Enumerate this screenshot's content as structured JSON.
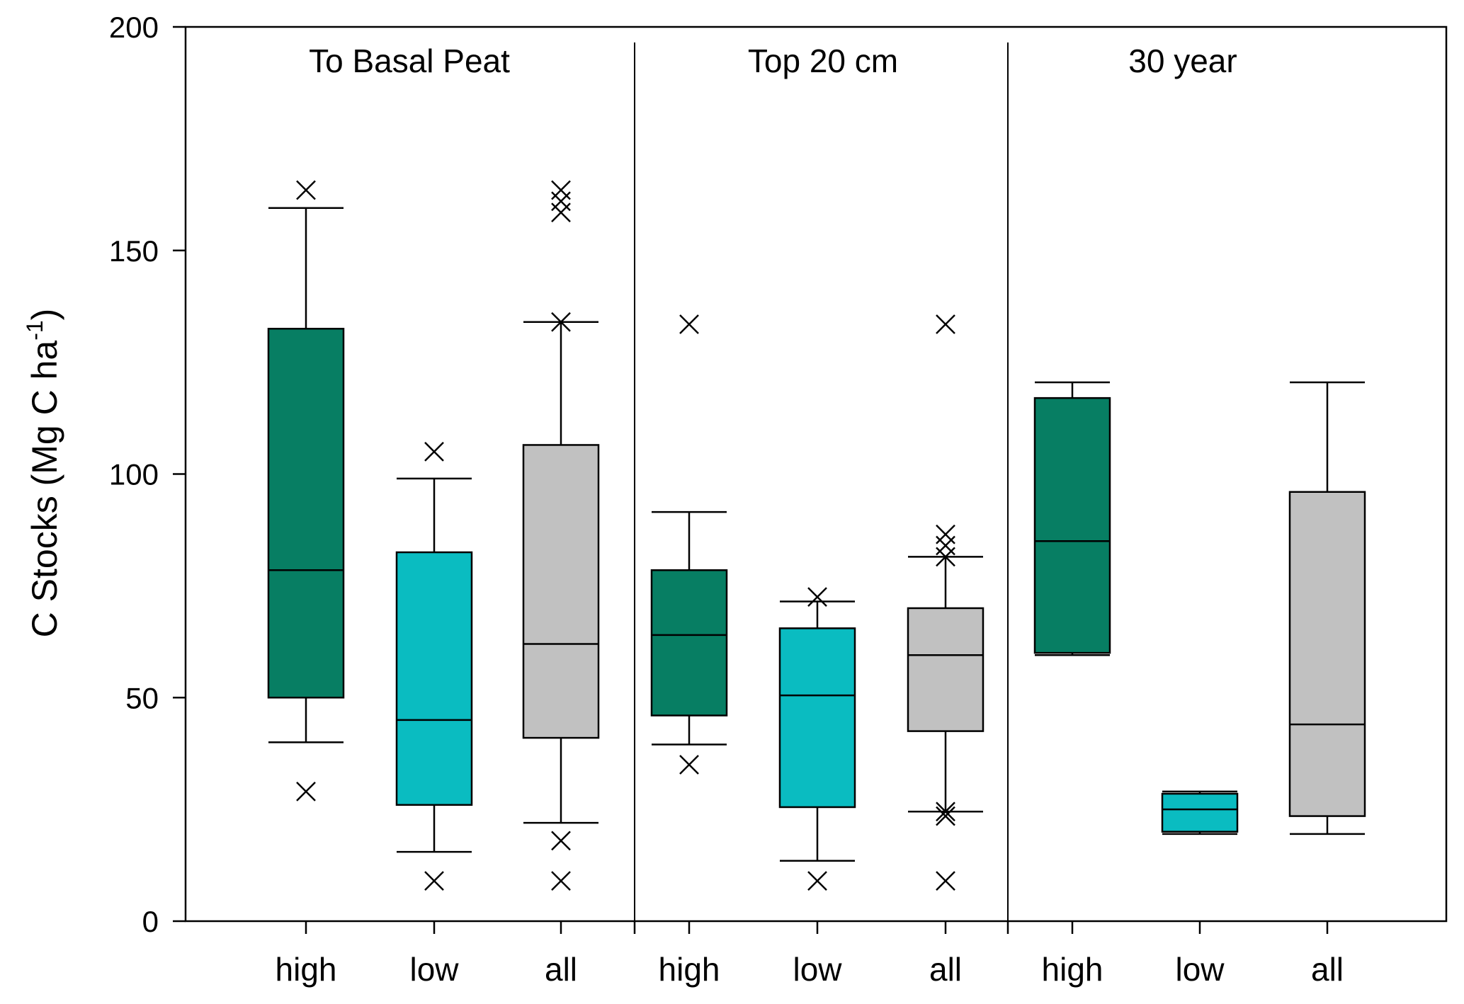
{
  "chart_data": {
    "type": "box",
    "ylabel": "C Stocks (Mg C ha",
    "ylabel_sup": "-1",
    "ylabel_close": ")",
    "ylim": [
      0,
      200
    ],
    "yticks": [
      0,
      50,
      100,
      150,
      200
    ],
    "grid": false,
    "colors": {
      "high": "#077e63",
      "low": "#0abcc1",
      "all": "#c1c1c1"
    },
    "panels": [
      {
        "title": "To Basal Peat",
        "boxes": [
          {
            "category": "high",
            "whisker_low": 40,
            "q1": 50,
            "median": 78.5,
            "q3": 132.5,
            "whisker_high": 159.5,
            "outliers": [
              29,
              163.5
            ]
          },
          {
            "category": "low",
            "whisker_low": 15.5,
            "q1": 26,
            "median": 45,
            "q3": 82.5,
            "whisker_high": 99,
            "outliers": [
              9,
              105
            ]
          },
          {
            "category": "all",
            "whisker_low": 22,
            "q1": 41,
            "median": 62,
            "q3": 106.5,
            "whisker_high": 134,
            "outliers": [
              9,
              18,
              134,
              158.5,
              161,
              163.5
            ]
          }
        ]
      },
      {
        "title": "Top 20 cm",
        "boxes": [
          {
            "category": "high",
            "whisker_low": 39.5,
            "q1": 46,
            "median": 64,
            "q3": 78.5,
            "whisker_high": 91.5,
            "outliers": [
              35,
              133.5
            ]
          },
          {
            "category": "low",
            "whisker_low": 13.5,
            "q1": 25.5,
            "median": 50.5,
            "q3": 65.5,
            "whisker_high": 71.5,
            "outliers": [
              9,
              72.5
            ]
          },
          {
            "category": "all",
            "whisker_low": 24.5,
            "q1": 42.5,
            "median": 59.5,
            "q3": 70,
            "whisker_high": 81.5,
            "outliers": [
              9,
              23.5,
              24.5,
              81.5,
              84,
              86.5,
              133.5
            ]
          }
        ]
      },
      {
        "title": "30 year",
        "boxes": [
          {
            "category": "high",
            "whisker_low": 59.5,
            "q1": 60,
            "median": 85,
            "q3": 117,
            "whisker_high": 120.5,
            "outliers": []
          },
          {
            "category": "low",
            "whisker_low": 19.5,
            "q1": 20,
            "median": 25,
            "q3": 28.5,
            "whisker_high": 29,
            "outliers": []
          },
          {
            "category": "all",
            "whisker_low": 19.5,
            "q1": 23.5,
            "median": 44,
            "q3": 96,
            "whisker_high": 120.5,
            "outliers": []
          }
        ]
      }
    ]
  }
}
